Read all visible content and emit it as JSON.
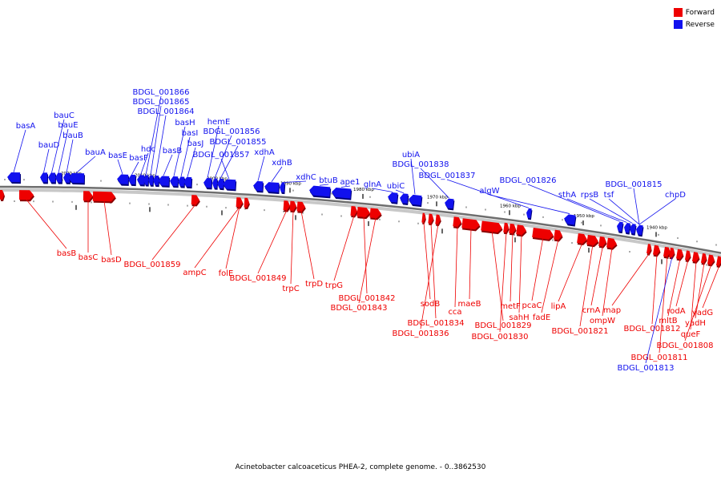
{
  "legend": {
    "forward_label": "Forward",
    "reverse_label": "Reverse",
    "forward_color": "#ee0000",
    "reverse_color": "#1111ee"
  },
  "caption": "Acinetobacter calcoaceticus PHEA-2, complete genome. - 0..3862530",
  "scale_labels": [
    "2020 kbp",
    "2010 kbp",
    "2000 kbp",
    "1990 kbp",
    "1980 kbp",
    "1970 kbp",
    "1960 kbp",
    "1950 kbp",
    "1940 kbp"
  ],
  "genes_top": [
    "basA",
    "bauD",
    "bauC",
    "bauE",
    "bauB",
    "bauA",
    "basE",
    "basF",
    "hdc",
    "BDGL_001866",
    "BDGL_001865",
    "BDGL_001864",
    "basB",
    "basH",
    "basI",
    "basJ",
    "hemE",
    "BDGL_001856",
    "BDGL_001855",
    "BDGL_001857",
    "xdhA",
    "xdhB",
    "xdhC",
    "btuB",
    "ape1",
    "glnA",
    "ubiC",
    "ubiA",
    "BDGL_001838",
    "BDGL_001837",
    "algW",
    "BDGL_001826",
    "sthA",
    "rpsB",
    "tsf",
    "BDGL_001815",
    "chpD"
  ],
  "genes_bottom": [
    "basB",
    "basC",
    "basD",
    "BDGL_001859",
    "ampC",
    "folE",
    "BDGL_001849",
    "trpC",
    "trpD",
    "trpG",
    "BDGL_001842",
    "BDGL_001843",
    "sodB",
    "BDGL_001834",
    "BDGL_001836",
    "cca",
    "maeB",
    "BDGL_001829",
    "BDGL_001830",
    "metF",
    "sahH",
    "pcaC",
    "fadE",
    "lipA",
    "BDGL_001821",
    "crnA",
    "ompW",
    "map",
    "BDGL_001812",
    "BDGL_001811",
    "BDGL_001813",
    "mltB",
    "rodA",
    "queF",
    "yadH",
    "BDGL_001808",
    "yadG"
  ]
}
